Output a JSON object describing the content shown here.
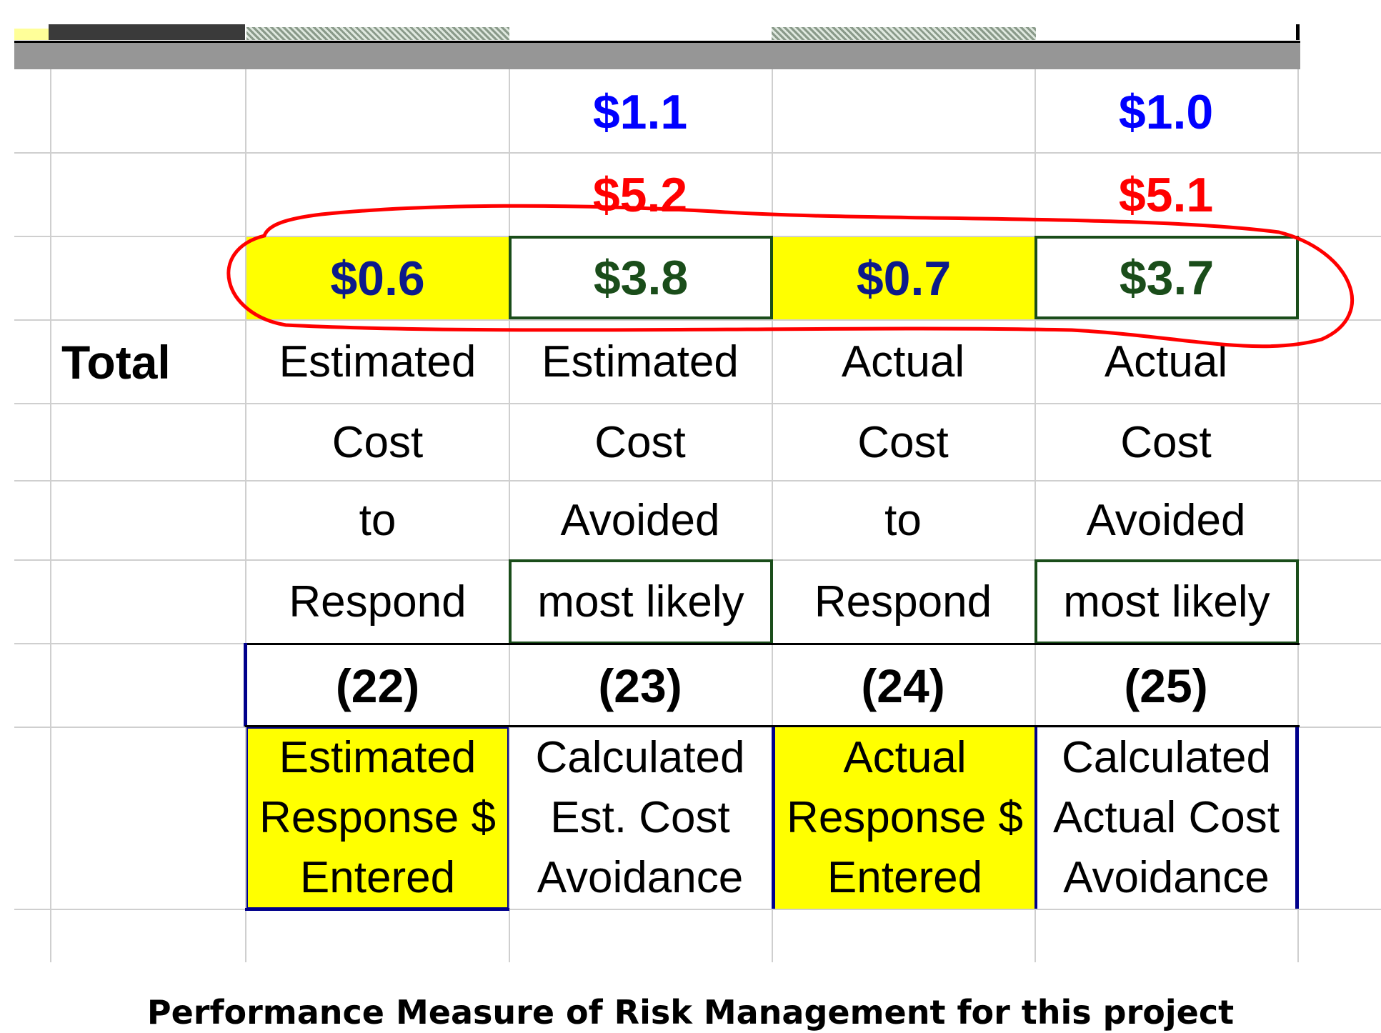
{
  "row_label": "Total",
  "columns": [
    {
      "top_value": "",
      "middle_value": "",
      "total_value": "$0.6",
      "header_lines": [
        "Estimated",
        "Cost",
        "to",
        "Respond"
      ],
      "number": "(22)",
      "description_lines": [
        "Estimated",
        "Response $",
        "Entered"
      ]
    },
    {
      "top_value": "$1.1",
      "middle_value": "$5.2",
      "total_value": "$3.8",
      "header_lines": [
        "Estimated",
        "Cost",
        "Avoided",
        "most likely"
      ],
      "number": "(23)",
      "description_lines": [
        "Calculated",
        "Est. Cost",
        "Avoidance"
      ]
    },
    {
      "top_value": "",
      "middle_value": "",
      "total_value": "$0.7",
      "header_lines": [
        "Actual",
        "Cost",
        "to",
        "Respond"
      ],
      "number": "(24)",
      "description_lines": [
        "Actual",
        "Response $",
        "Entered"
      ]
    },
    {
      "top_value": "$1.0",
      "middle_value": "$5.1",
      "total_value": "$3.7",
      "header_lines": [
        "Actual",
        "Cost",
        "Avoided",
        "most likely"
      ],
      "number": "(25)",
      "description_lines": [
        "Calculated",
        "Actual Cost",
        "Avoidance"
      ]
    }
  ],
  "caption": "Performance Measure of Risk Management for this project",
  "colors": {
    "top_value": "#0000ff",
    "middle_value": "#ff0000",
    "total_value_yellow_cols": "#0c1a8a",
    "total_value_boxed_cols": "#1a4d1a",
    "highlight": "#ffff00",
    "annotation_circle": "#ff0000"
  }
}
